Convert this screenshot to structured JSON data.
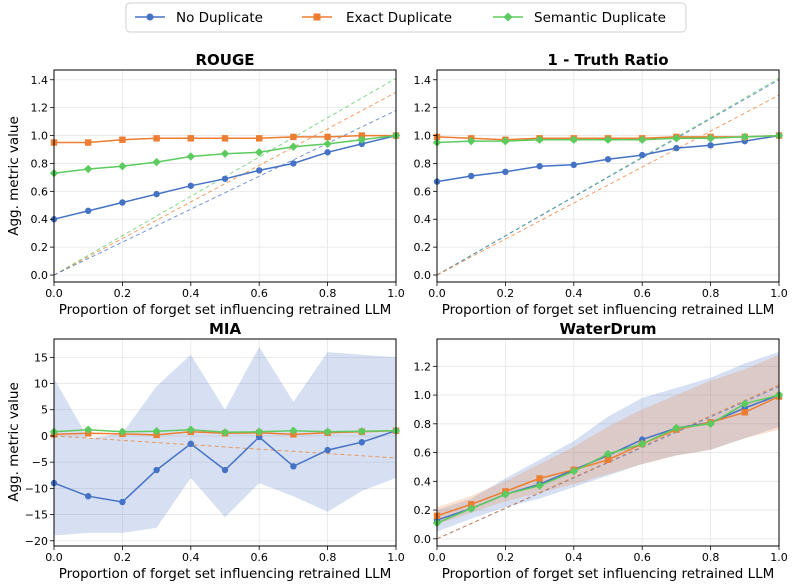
{
  "legend": {
    "entries": [
      {
        "name": "No Duplicate",
        "color": "#4472c4",
        "marker": "circle"
      },
      {
        "name": "Exact Duplicate",
        "color": "#ed7d31",
        "marker": "square"
      },
      {
        "name": "Semantic Duplicate",
        "color": "#5ccb5f",
        "marker": "diamond"
      }
    ]
  },
  "chart_data": [
    {
      "type": "line",
      "title": "ROUGE",
      "xlabel": "Proportion of forget set influencing retrained LLM",
      "ylabel": "Agg. metric value",
      "xlim": [
        0,
        1
      ],
      "ylim": [
        -0.05,
        1.47
      ],
      "xticks": [
        0,
        0.2,
        0.4,
        0.6,
        0.8,
        1.0
      ],
      "xticklabels": [
        "0.0",
        "0.2",
        "0.4",
        "0.6",
        "0.8",
        "1.0"
      ],
      "yticks": [
        0,
        0.2,
        0.4,
        0.6,
        0.8,
        1.0,
        1.2,
        1.4
      ],
      "yticklabels": [
        "0.0",
        "0.2",
        "0.4",
        "0.6",
        "0.8",
        "1.0",
        "1.2",
        "1.4"
      ],
      "x": [
        0,
        0.1,
        0.2,
        0.3,
        0.4,
        0.5,
        0.6,
        0.7,
        0.8,
        0.9,
        1.0
      ],
      "series": [
        {
          "name": "No Duplicate",
          "values": [
            0.4,
            0.46,
            0.52,
            0.58,
            0.64,
            0.69,
            0.75,
            0.8,
            0.88,
            0.94,
            1.0
          ]
        },
        {
          "name": "Exact Duplicate",
          "values": [
            0.95,
            0.95,
            0.97,
            0.98,
            0.98,
            0.98,
            0.98,
            0.99,
            0.99,
            1.0,
            1.0
          ]
        },
        {
          "name": "Semantic Duplicate",
          "values": [
            0.73,
            0.76,
            0.78,
            0.81,
            0.85,
            0.87,
            0.88,
            0.92,
            0.94,
            0.97,
            1.0
          ]
        }
      ],
      "reference_lines": [
        {
          "color": "#5ccb5f",
          "from": [
            0,
            0
          ],
          "to": [
            1,
            1.41
          ]
        },
        {
          "color": "#ed7d31",
          "from": [
            0,
            0
          ],
          "to": [
            1,
            1.31
          ]
        },
        {
          "color": "#4472c4",
          "from": [
            0,
            0
          ],
          "to": [
            1,
            1.18
          ]
        }
      ]
    },
    {
      "type": "line",
      "title": "1 - Truth Ratio",
      "xlabel": "Proportion of forget set influencing retrained LLM",
      "ylabel": "",
      "xlim": [
        0,
        1
      ],
      "ylim": [
        -0.05,
        1.47
      ],
      "xticks": [
        0,
        0.2,
        0.4,
        0.6,
        0.8,
        1.0
      ],
      "xticklabels": [
        "0.0",
        "0.2",
        "0.4",
        "0.6",
        "0.8",
        "1.0"
      ],
      "yticks": [
        0,
        0.2,
        0.4,
        0.6,
        0.8,
        1.0,
        1.2,
        1.4
      ],
      "yticklabels": [
        "0.0",
        "0.2",
        "0.4",
        "0.6",
        "0.8",
        "1.0",
        "1.2",
        "1.4"
      ],
      "x": [
        0,
        0.1,
        0.2,
        0.3,
        0.4,
        0.5,
        0.6,
        0.7,
        0.8,
        0.9,
        1.0
      ],
      "series": [
        {
          "name": "No Duplicate",
          "values": [
            0.67,
            0.71,
            0.74,
            0.78,
            0.79,
            0.83,
            0.86,
            0.91,
            0.93,
            0.96,
            1.0
          ]
        },
        {
          "name": "Exact Duplicate",
          "values": [
            0.99,
            0.98,
            0.97,
            0.98,
            0.98,
            0.98,
            0.98,
            0.99,
            0.99,
            0.99,
            1.0
          ]
        },
        {
          "name": "Semantic Duplicate",
          "values": [
            0.95,
            0.96,
            0.96,
            0.97,
            0.97,
            0.97,
            0.97,
            0.98,
            0.98,
            0.99,
            1.0
          ]
        }
      ],
      "reference_lines": [
        {
          "color": "#5ccb5f",
          "from": [
            0,
            0
          ],
          "to": [
            1,
            1.41
          ]
        },
        {
          "color": "#4472c4",
          "from": [
            0,
            0
          ],
          "to": [
            1,
            1.4
          ]
        },
        {
          "color": "#ed7d31",
          "from": [
            0,
            0
          ],
          "to": [
            1,
            1.29
          ]
        }
      ]
    },
    {
      "type": "line",
      "title": "MIA",
      "xlabel": "Proportion of forget set influencing retrained LLM",
      "ylabel": "Agg. metric value",
      "xlim": [
        0,
        1
      ],
      "ylim": [
        -21,
        18.5
      ],
      "xticks": [
        0,
        0.2,
        0.4,
        0.6,
        0.8,
        1.0
      ],
      "xticklabels": [
        "0.0",
        "0.2",
        "0.4",
        "0.6",
        "0.8",
        "1.0"
      ],
      "yticks": [
        -20,
        -15,
        -10,
        -5,
        0,
        5,
        10,
        15
      ],
      "yticklabels": [
        "−20",
        "−15",
        "−10",
        "−5",
        "0",
        "5",
        "10",
        "15"
      ],
      "x": [
        0,
        0.1,
        0.2,
        0.3,
        0.4,
        0.5,
        0.6,
        0.7,
        0.8,
        0.9,
        1.0
      ],
      "series": [
        {
          "name": "No Duplicate",
          "values": [
            -9.0,
            -11.5,
            -12.6,
            -6.5,
            -1.5,
            -6.5,
            -0.2,
            -5.8,
            -2.7,
            -1.2,
            1.0
          ]
        },
        {
          "name": "Exact Duplicate",
          "values": [
            0.3,
            0.5,
            0.4,
            0.2,
            0.8,
            0.5,
            0.6,
            0.3,
            0.6,
            0.8,
            1.0
          ]
        },
        {
          "name": "Semantic Duplicate",
          "values": [
            0.8,
            1.2,
            0.8,
            0.9,
            1.2,
            0.7,
            0.8,
            1.0,
            0.8,
            0.9,
            1.0
          ]
        }
      ],
      "bands": [
        {
          "name": "No Duplicate",
          "color": "#4472c4",
          "upper": [
            11.0,
            -0.5,
            0.5,
            9.5,
            15.5,
            5.0,
            17.0,
            6.5,
            16.0,
            15.5,
            15.0
          ],
          "lower": [
            -19.0,
            -18.5,
            -18.5,
            -17.5,
            -8.0,
            -15.5,
            -9.0,
            -11.5,
            -14.5,
            -10.5,
            -8.0
          ]
        }
      ],
      "reference_lines": [
        {
          "color": "#ed7d31",
          "from": [
            0,
            0
          ],
          "to": [
            1,
            -4.2
          ]
        }
      ]
    },
    {
      "type": "line",
      "title": "WaterDrum",
      "xlabel": "Proportion of forget set influencing retrained LLM",
      "ylabel": "",
      "xlim": [
        0,
        1
      ],
      "ylim": [
        -0.05,
        1.39
      ],
      "xticks": [
        0,
        0.2,
        0.4,
        0.6,
        0.8,
        1.0
      ],
      "xticklabels": [
        "0.0",
        "0.2",
        "0.4",
        "0.6",
        "0.8",
        "1.0"
      ],
      "yticks": [
        0,
        0.2,
        0.4,
        0.6,
        0.8,
        1.0,
        1.2
      ],
      "yticklabels": [
        "0.0",
        "0.2",
        "0.4",
        "0.6",
        "0.8",
        "1.0",
        "1.2"
      ],
      "x": [
        0,
        0.1,
        0.2,
        0.3,
        0.4,
        0.5,
        0.6,
        0.7,
        0.8,
        0.9,
        1.0
      ],
      "series": [
        {
          "name": "No Duplicate",
          "values": [
            0.13,
            0.21,
            0.31,
            0.38,
            0.48,
            0.58,
            0.69,
            0.77,
            0.81,
            0.91,
            1.0
          ]
        },
        {
          "name": "Exact Duplicate",
          "values": [
            0.16,
            0.24,
            0.33,
            0.42,
            0.48,
            0.55,
            0.66,
            0.76,
            0.81,
            0.88,
            0.99
          ]
        },
        {
          "name": "Semantic Duplicate",
          "values": [
            0.11,
            0.21,
            0.31,
            0.37,
            0.47,
            0.59,
            0.66,
            0.77,
            0.8,
            0.94,
            1.0
          ]
        }
      ],
      "bands": [
        {
          "name": "No Duplicate",
          "color": "#4472c4",
          "upper": [
            0.2,
            0.28,
            0.42,
            0.55,
            0.68,
            0.85,
            0.98,
            1.05,
            1.12,
            1.22,
            1.3
          ],
          "lower": [
            0.05,
            0.14,
            0.22,
            0.28,
            0.36,
            0.44,
            0.52,
            0.58,
            0.62,
            0.7,
            0.78
          ]
        },
        {
          "name": "Exact Duplicate",
          "color": "#ed7d31",
          "upper": [
            0.22,
            0.3,
            0.4,
            0.52,
            0.64,
            0.78,
            0.9,
            1.0,
            1.1,
            1.18,
            1.28
          ],
          "lower": [
            0.1,
            0.18,
            0.26,
            0.32,
            0.38,
            0.45,
            0.52,
            0.58,
            0.62,
            0.7,
            0.76
          ]
        }
      ],
      "reference_lines": [
        {
          "color": "#4472c4",
          "from": [
            0,
            0
          ],
          "to": [
            1,
            1.06
          ]
        },
        {
          "color": "#ed7d31",
          "from": [
            0,
            0
          ],
          "to": [
            1,
            1.07
          ]
        }
      ]
    }
  ]
}
